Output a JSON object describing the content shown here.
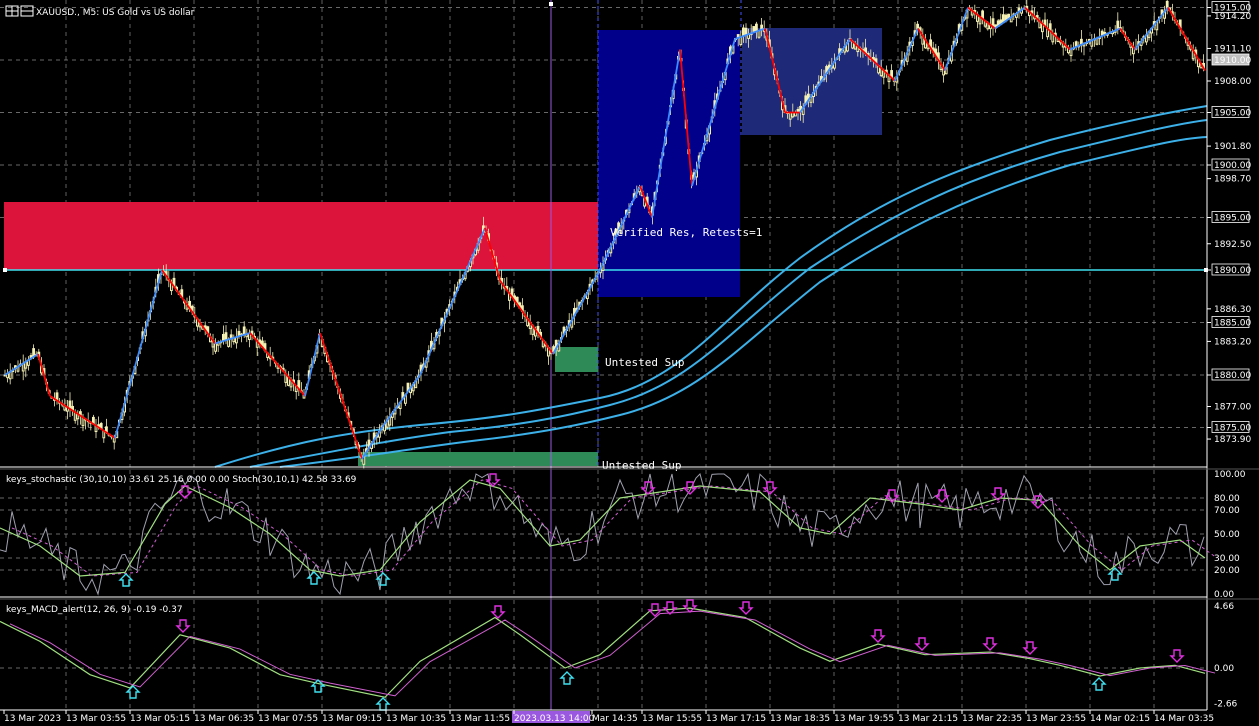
{
  "header": {
    "symbol_info": "XAUUSD., M5: US Gold vs US dollar",
    "window_icon": "chart-window-icon"
  },
  "price_axis": {
    "labels": [
      "1915.00",
      "1914.20",
      "1911.10",
      "1910.00",
      "1908.00",
      "1905.00",
      "1901.80",
      "1900.00",
      "1898.70",
      "1895.00",
      "1892.50",
      "1890.00",
      "1886.30",
      "1885.00",
      "1883.20",
      "1880.00",
      "1877.00",
      "1875.00",
      "1873.90"
    ],
    "boxed": [
      "1915.00",
      "1910.00",
      "1905.00",
      "1900.00",
      "1895.00",
      "1890.00",
      "1885.00",
      "1880.00",
      "1875.00"
    ],
    "current_price": "1910.00"
  },
  "zones": {
    "verified_res": "Verified Res, Retests=1",
    "untested_sup_1": "Untested Sup",
    "untested_sup_2": "Untested Sup"
  },
  "stochastic": {
    "title": "keys_stochastic (30,10,10) 33.61 25.16 0.00 0.00 Stoch(30,10,1) 42.58 33.69",
    "levels": [
      "100.00",
      "80.00",
      "70.00",
      "50.00",
      "30.00",
      "20.00",
      "0.00"
    ]
  },
  "macd": {
    "title": "keys_MACD_alert(12, 26, 9) -0.19 -0.37",
    "levels": [
      "4.66",
      "0.00",
      "-2.66"
    ]
  },
  "time_axis": {
    "labels": [
      "13 Mar 2023",
      "13 Mar 03:55",
      "13 Mar 05:15",
      "13 Mar 06:35",
      "13 Mar 07:55",
      "13 Mar 09:15",
      "13 Mar 10:35",
      "13 Mar 11:55",
      "2023.03.13 14:00",
      "Mar 14:35",
      "13 Mar 15:55",
      "13 Mar 17:15",
      "13 Mar 18:35",
      "13 Mar 19:55",
      "13 Mar 21:15",
      "13 Mar 22:35",
      "13 Mar 23:55",
      "14 Mar 02:15",
      "14 Mar 03:35"
    ],
    "crosshair_label": "2023.03.13 14:00"
  },
  "colors": {
    "background": "#000000",
    "resistance_zone": "#dc143c",
    "support_zone": "#2e8b57",
    "blue_box": "#00008b",
    "navy_box": "#1e2a78",
    "ma_lines": "#3cb0e8",
    "zigzag_up": "#3c8cff",
    "zigzag_down": "#ff0000",
    "candle": "#f5f0b4",
    "crosshair": "#9a58e0",
    "up_arrow": "#40e0f0",
    "down_arrow": "#e030e0"
  }
}
